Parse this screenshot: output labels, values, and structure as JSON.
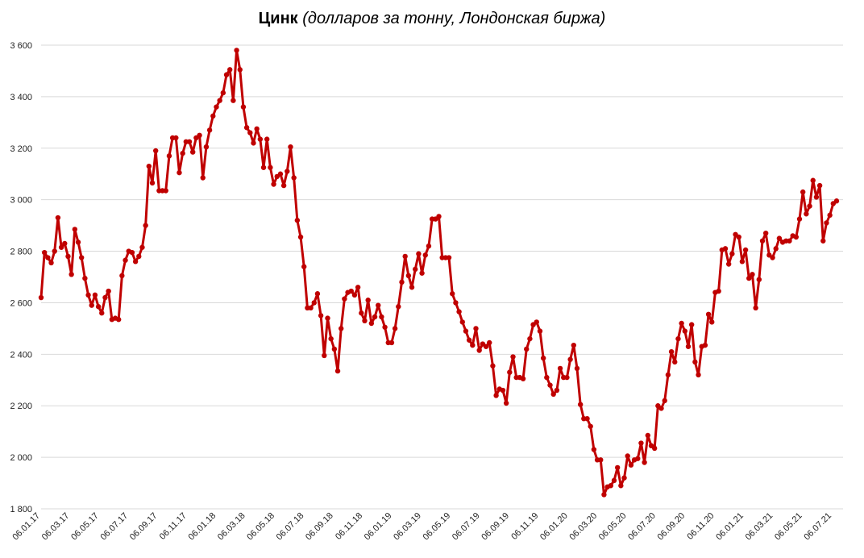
{
  "chart_data": {
    "type": "line",
    "title": "Цинк",
    "subtitle": "(долларов за тонну, Лондонская биржа)",
    "xlabel": "",
    "ylabel": "",
    "ylim": [
      1800,
      3600
    ],
    "yticks": [
      1800,
      2000,
      2200,
      2400,
      2600,
      2800,
      3000,
      3200,
      3400,
      3600
    ],
    "ytick_labels": [
      "1 800",
      "2 000",
      "2 200",
      "2 400",
      "2 600",
      "2 800",
      "3 000",
      "3 200",
      "3 400",
      "3 600"
    ],
    "x_tick_labels": [
      "06.01.17",
      "06.03.17",
      "06.05.17",
      "06.07.17",
      "06.09.17",
      "06.11.17",
      "06.01.18",
      "06.03.18",
      "06.05.18",
      "06.07.18",
      "06.09.18",
      "06.11.18",
      "06.01.19",
      "06.03.19",
      "06.05.19",
      "06.07.19",
      "06.09.19",
      "06.11.19",
      "06.01.20",
      "06.03.20",
      "06.05.20",
      "06.07.20",
      "06.09.20",
      "06.11.20",
      "06.01.21",
      "06.03.21",
      "06.05.21",
      "06.07.21"
    ],
    "grid": true,
    "color": "#c00000",
    "series": [
      {
        "values": [
          2620,
          2795,
          2775,
          2755,
          2800,
          2930,
          2815,
          2830,
          2780,
          2710,
          2885,
          2835,
          2775,
          2695,
          2630,
          2590,
          2630,
          2585,
          2560,
          2620,
          2645,
          2535,
          2540,
          2535,
          2705,
          2765,
          2800,
          2795,
          2760,
          2780,
          2815,
          2900,
          3130,
          3065,
          3190,
          3035,
          3035,
          3035,
          3170,
          3240,
          3240,
          3105,
          3180,
          3225,
          3225,
          3185,
          3240,
          3250,
          3085,
          3205,
          3270,
          3325,
          3360,
          3385,
          3415,
          3485,
          3505,
          3385,
          3580,
          3505,
          3360,
          3280,
          3260,
          3220,
          3275,
          3235,
          3125,
          3235,
          3125,
          3060,
          3090,
          3100,
          3055,
          3110,
          3205,
          3085,
          2920,
          2855,
          2740,
          2580,
          2580,
          2600,
          2635,
          2550,
          2395,
          2540,
          2460,
          2420,
          2335,
          2500,
          2615,
          2640,
          2645,
          2630,
          2660,
          2560,
          2530,
          2610,
          2520,
          2545,
          2590,
          2545,
          2505,
          2445,
          2445,
          2500,
          2585,
          2680,
          2780,
          2705,
          2660,
          2730,
          2790,
          2715,
          2785,
          2820,
          2925,
          2925,
          2935,
          2775,
          2775,
          2775,
          2635,
          2600,
          2565,
          2525,
          2490,
          2455,
          2435,
          2500,
          2415,
          2440,
          2430,
          2445,
          2355,
          2240,
          2265,
          2260,
          2210,
          2330,
          2390,
          2310,
          2310,
          2305,
          2420,
          2460,
          2515,
          2525,
          2490,
          2385,
          2310,
          2280,
          2245,
          2260,
          2345,
          2310,
          2310,
          2380,
          2435,
          2345,
          2205,
          2150,
          2150,
          2120,
          2030,
          1990,
          1990,
          1855,
          1885,
          1890,
          1910,
          1960,
          1890,
          1920,
          2005,
          1970,
          1990,
          1995,
          2055,
          1980,
          2085,
          2045,
          2035,
          2200,
          2190,
          2220,
          2320,
          2410,
          2370,
          2460,
          2520,
          2490,
          2430,
          2515,
          2370,
          2320,
          2430,
          2435,
          2555,
          2525,
          2640,
          2645,
          2805,
          2810,
          2750,
          2790,
          2865,
          2855,
          2760,
          2805,
          2695,
          2710,
          2580,
          2690,
          2840,
          2870,
          2785,
          2775,
          2810,
          2850,
          2835,
          2840,
          2840,
          2860,
          2855,
          2925,
          3030,
          2945,
          2975,
          3075,
          3010,
          3055,
          2840,
          2910,
          2940,
          2985,
          2995
        ]
      }
    ]
  }
}
